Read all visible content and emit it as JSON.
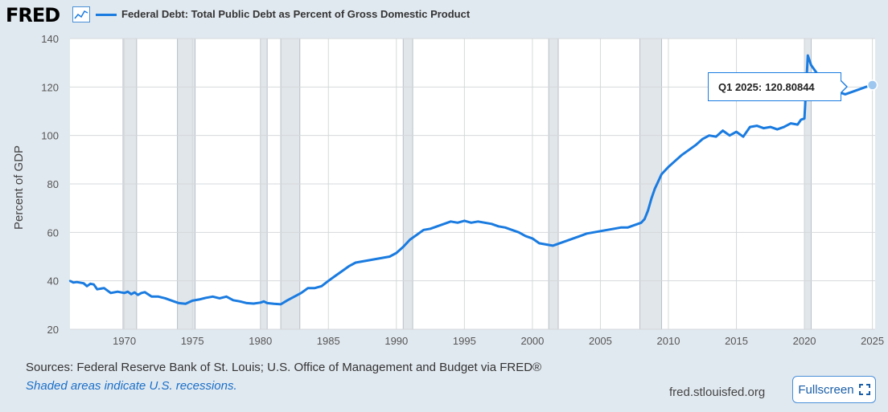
{
  "header": {
    "logo_text": "FRED",
    "logo_icon": "trend-chart-icon",
    "series_title": "Federal Debt: Total Public Debt as Percent of Gross Domestic Product"
  },
  "footer": {
    "sources": "Sources: Federal Reserve Bank of St. Louis; U.S. Office of Management and Budget via FRED®",
    "shaded_note": "Shaded areas indicate U.S. recessions.",
    "site": "fred.stlouisfed.org",
    "fullscreen_label": "Fullscreen",
    "fullscreen_icon": "expand-icon"
  },
  "tooltip": {
    "period": "Q1 2025:",
    "value": "120.80844"
  },
  "colors": {
    "line": "#1a7be0",
    "recession": "#e1e6ea",
    "background": "#e1e9f0"
  },
  "chart_data": {
    "type": "line",
    "title": "Federal Debt: Total Public Debt as Percent of Gross Domestic Product",
    "ylabel": "Percent of GDP",
    "xlabel": "",
    "xlim": [
      1966,
      2025.2
    ],
    "ylim": [
      20,
      140
    ],
    "yticks": [
      20,
      40,
      60,
      80,
      100,
      120,
      140
    ],
    "xticks": [
      1970,
      1975,
      1980,
      1985,
      1990,
      1995,
      2000,
      2005,
      2010,
      2015,
      2020,
      2025
    ],
    "recessions": [
      [
        1969.9,
        1970.9
      ],
      [
        1973.9,
        1975.2
      ],
      [
        1980.0,
        1980.5
      ],
      [
        1981.5,
        1982.9
      ],
      [
        1990.5,
        1991.2
      ],
      [
        2001.2,
        2001.9
      ],
      [
        2007.9,
        2009.5
      ],
      [
        2020.0,
        2020.5
      ]
    ],
    "series": [
      {
        "name": "Federal Debt: Total Public Debt as Percent of Gross Domestic Product",
        "x": [
          1966.0,
          1966.25,
          1966.5,
          1967.0,
          1967.25,
          1967.5,
          1967.75,
          1968.0,
          1968.5,
          1969.0,
          1969.5,
          1970.0,
          1970.25,
          1970.5,
          1970.75,
          1971.0,
          1971.25,
          1971.5,
          1972.0,
          1972.5,
          1973.0,
          1973.5,
          1974.0,
          1974.5,
          1975.0,
          1975.5,
          1976.0,
          1976.5,
          1977.0,
          1977.5,
          1978.0,
          1978.5,
          1979.0,
          1979.5,
          1980.0,
          1980.25,
          1980.5,
          1981.0,
          1981.5,
          1982.0,
          1982.5,
          1983.0,
          1983.5,
          1984.0,
          1984.5,
          1985.0,
          1985.5,
          1986.0,
          1986.5,
          1987.0,
          1987.5,
          1988.0,
          1988.5,
          1989.0,
          1989.5,
          1990.0,
          1990.5,
          1991.0,
          1991.5,
          1992.0,
          1992.5,
          1993.0,
          1993.5,
          1994.0,
          1994.5,
          1995.0,
          1995.5,
          1996.0,
          1996.5,
          1997.0,
          1997.5,
          1998.0,
          1998.5,
          1999.0,
          1999.5,
          2000.0,
          2000.5,
          2001.0,
          2001.5,
          2002.0,
          2002.5,
          2003.0,
          2003.5,
          2004.0,
          2004.5,
          2005.0,
          2005.5,
          2006.0,
          2006.5,
          2007.0,
          2007.5,
          2008.0,
          2008.25,
          2008.5,
          2008.75,
          2009.0,
          2009.25,
          2009.5,
          2010.0,
          2010.5,
          2011.0,
          2011.5,
          2012.0,
          2012.5,
          2013.0,
          2013.5,
          2014.0,
          2014.25,
          2014.5,
          2015.0,
          2015.5,
          2016.0,
          2016.5,
          2017.0,
          2017.5,
          2018.0,
          2018.5,
          2019.0,
          2019.5,
          2019.75,
          2020.0,
          2020.25,
          2020.5,
          2020.75,
          2021.0,
          2021.5,
          2022.0,
          2022.5,
          2023.0,
          2023.5,
          2024.0,
          2024.5,
          2025.0
        ],
        "values": [
          40.0,
          39.3,
          39.5,
          39.0,
          37.8,
          38.8,
          38.5,
          36.5,
          37.0,
          35.0,
          35.5,
          35.0,
          35.5,
          34.5,
          35.2,
          34.2,
          35.0,
          35.3,
          33.5,
          33.5,
          32.8,
          31.8,
          30.8,
          30.5,
          31.8,
          32.3,
          33.0,
          33.5,
          32.8,
          33.5,
          32.0,
          31.5,
          30.8,
          30.6,
          31.0,
          31.5,
          30.8,
          30.5,
          30.3,
          32.0,
          33.5,
          35.0,
          37.0,
          37.0,
          37.8,
          40.0,
          42.0,
          44.0,
          46.0,
          47.5,
          48.0,
          48.5,
          49.0,
          49.5,
          50.0,
          51.5,
          54.0,
          57.0,
          59.0,
          61.0,
          61.5,
          62.5,
          63.5,
          64.5,
          64.0,
          64.8,
          64.0,
          64.5,
          64.0,
          63.5,
          62.5,
          62.0,
          61.0,
          60.0,
          58.5,
          57.5,
          55.5,
          55.0,
          54.5,
          55.5,
          56.5,
          57.5,
          58.5,
          59.5,
          60.0,
          60.5,
          61.0,
          61.5,
          62.0,
          62.0,
          63.0,
          64.0,
          65.5,
          69.0,
          74.0,
          78.0,
          81.0,
          84.0,
          87.0,
          89.5,
          92.0,
          94.0,
          96.0,
          98.5,
          100.0,
          99.5,
          102.0,
          101.0,
          100.0,
          101.5,
          99.5,
          103.5,
          104.0,
          103.0,
          103.5,
          102.5,
          103.5,
          105.0,
          104.5,
          106.5,
          107.0,
          133.0,
          129.0,
          127.0,
          125.0,
          122.0,
          120.0,
          118.0,
          117.0,
          118.0,
          119.0,
          120.0,
          120.80844
        ]
      }
    ]
  }
}
